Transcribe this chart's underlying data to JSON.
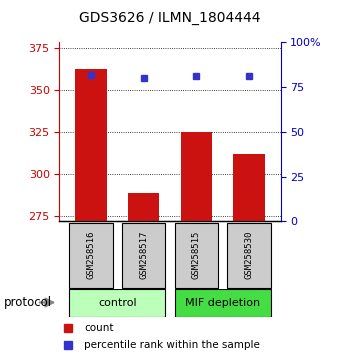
{
  "title": "GDS3626 / ILMN_1804444",
  "samples": [
    "GSM258516",
    "GSM258517",
    "GSM258515",
    "GSM258530"
  ],
  "bar_values": [
    362,
    289,
    325,
    312
  ],
  "percentile_values": [
    82,
    80,
    81,
    81
  ],
  "ylim_left": [
    272,
    378
  ],
  "ylim_right": [
    0,
    100
  ],
  "yticks_left": [
    275,
    300,
    325,
    350,
    375
  ],
  "yticks_right": [
    0,
    25,
    50,
    75,
    100
  ],
  "bar_color": "#cc1111",
  "dot_color": "#3333cc",
  "bar_bottom": 272,
  "groups": [
    {
      "label": "control",
      "samples_idx": [
        0,
        1
      ],
      "color": "#bbffbb"
    },
    {
      "label": "MIF depletion",
      "samples_idx": [
        2,
        3
      ],
      "color": "#44dd44"
    }
  ],
  "sample_box_color": "#cccccc",
  "left_tick_color": "#cc0000",
  "right_tick_color": "#0000cc",
  "protocol_label": "protocol",
  "legend_items": [
    {
      "label": "count",
      "color": "#cc1111"
    },
    {
      "label": "percentile rank within the sample",
      "color": "#3333cc"
    }
  ]
}
